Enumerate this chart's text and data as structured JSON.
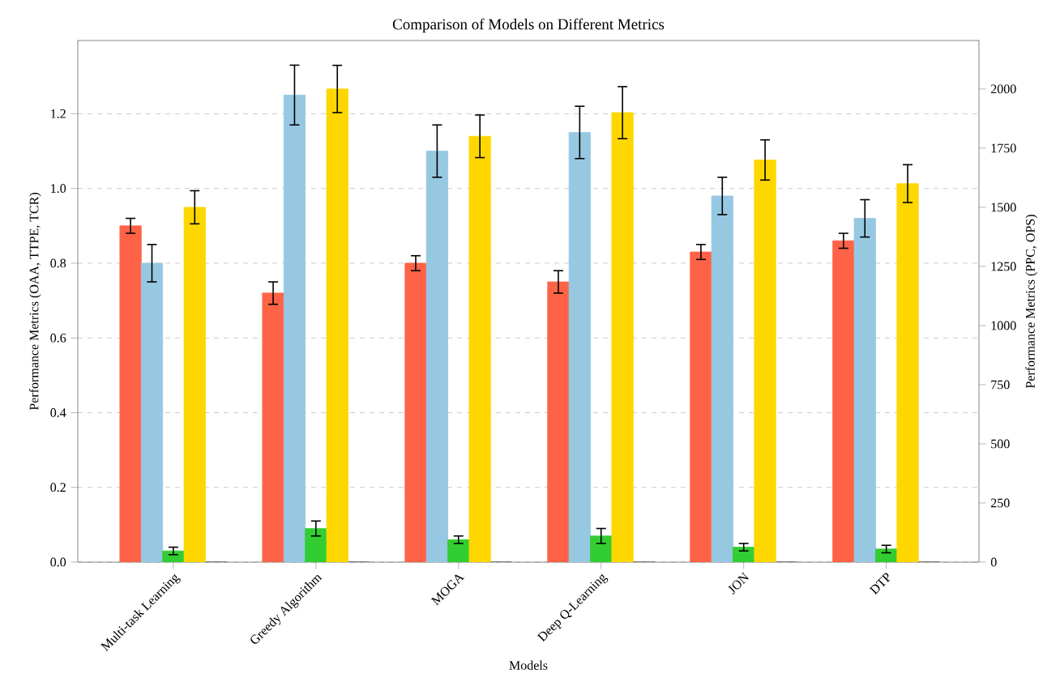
{
  "chart_data": {
    "type": "bar",
    "title": "Comparison of Models on Different Metrics",
    "xlabel": "Models",
    "ylabel": "Performance Metrics (OAA, TTPE, TCR)",
    "y2label": "Performance Metrics (PPC, OPS)",
    "categories": [
      "Multi-task Learning",
      "Greedy Algorithm",
      "MOGA",
      "Deep Q-Learning",
      "JON",
      "DTP"
    ],
    "series": [
      {
        "color": "#ff6347",
        "axis": "y",
        "values": [
          0.9,
          0.72,
          0.8,
          0.75,
          0.83,
          0.86
        ],
        "errors": [
          0.02,
          0.03,
          0.02,
          0.03,
          0.02,
          0.02
        ]
      },
      {
        "color": "#96c8e2",
        "axis": "y",
        "values": [
          0.8,
          1.25,
          1.1,
          1.15,
          0.98,
          0.92
        ],
        "errors": [
          0.05,
          0.08,
          0.07,
          0.07,
          0.05,
          0.05
        ]
      },
      {
        "color": "#32cd32",
        "axis": "y",
        "values": [
          0.03,
          0.09,
          0.06,
          0.07,
          0.04,
          0.035
        ],
        "errors": [
          0.01,
          0.02,
          0.01,
          0.02,
          0.01,
          0.01
        ]
      },
      {
        "color": "#ffd700",
        "axis": "y2",
        "values": [
          1500,
          2000,
          1800,
          1900,
          1700,
          1600
        ],
        "errors": [
          70,
          100,
          90,
          110,
          85,
          80
        ]
      },
      {
        "color": "#555555",
        "axis": "y2",
        "values": [
          0,
          0,
          0,
          0,
          0,
          0
        ]
      }
    ],
    "ylim": [
      0,
      1.396
    ],
    "yticks": [
      {
        "value": 0,
        "label": "0.0"
      },
      0.2,
      0.4,
      0.6,
      0.8,
      {
        "value": 1,
        "label": "1.0"
      },
      1.2
    ],
    "y2lim": [
      0,
      2205
    ],
    "y2ticks": [
      0,
      250,
      500,
      750,
      1000,
      1250,
      1500,
      1750,
      2000
    ],
    "grid": "y"
  }
}
